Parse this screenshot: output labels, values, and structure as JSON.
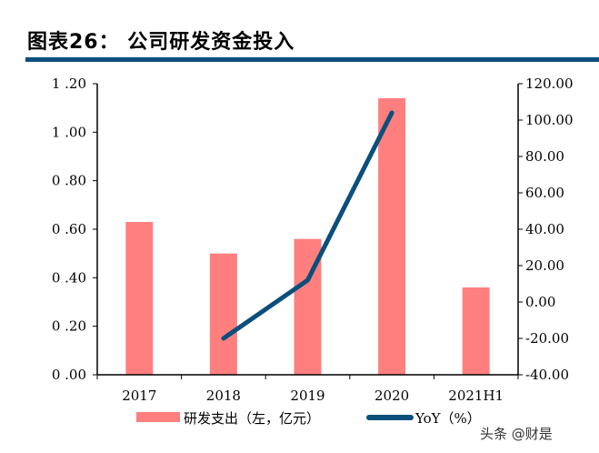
{
  "title": "图表26：  公司研发资金投入",
  "watermark": "头条 @财是",
  "chart_data": {
    "type": "bar",
    "categories": [
      "2017",
      "2018",
      "2019",
      "2020",
      "2021H1"
    ],
    "series": [
      {
        "name": "研发支出（左，亿元）",
        "type": "bar",
        "axis": "left",
        "color": "#ff7f7f",
        "values": [
          0.63,
          0.5,
          0.56,
          1.14,
          0.36
        ]
      },
      {
        "name": "YoY（%）",
        "type": "line",
        "axis": "right",
        "color": "#0b4f7c",
        "values": [
          null,
          -20,
          12,
          104,
          null
        ]
      }
    ],
    "ylim_left": [
      0,
      1.2
    ],
    "yticks_left": [
      "0.00",
      "0.20",
      "0.40",
      "0.60",
      "0.80",
      "1.00",
      "1.20"
    ],
    "ylim_right": [
      -40,
      120
    ],
    "yticks_right": [
      "-40.00",
      "-20.00",
      "0.00",
      "20.00",
      "40.00",
      "60.00",
      "80.00",
      "100.00",
      "120.00"
    ],
    "grid": false,
    "legend": "bottom"
  }
}
